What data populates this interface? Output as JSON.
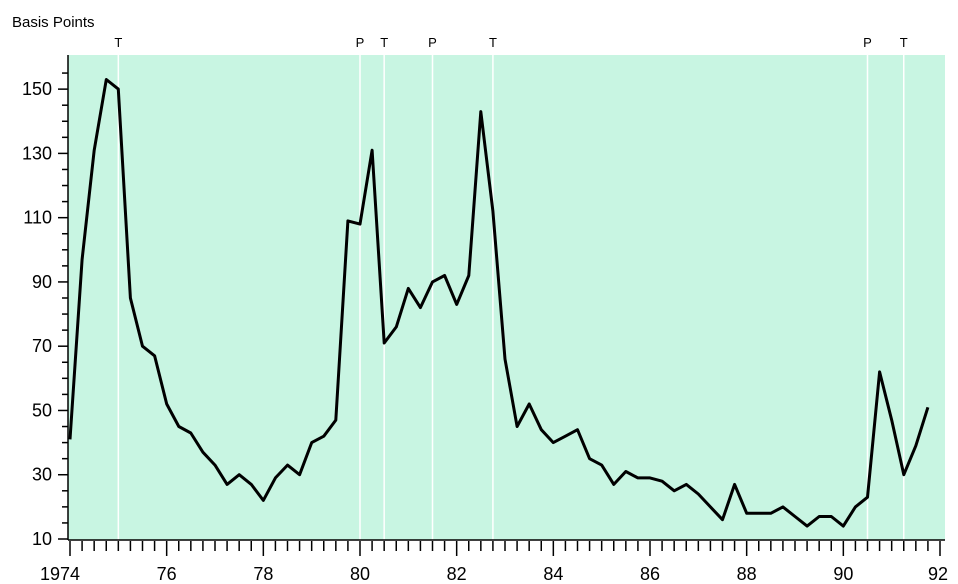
{
  "chart_data": {
    "type": "line",
    "ylabel": "Basis Points",
    "xlim": [
      1974,
      1992
    ],
    "ylim": [
      10,
      160
    ],
    "y_ticks": [
      10,
      30,
      50,
      70,
      90,
      110,
      130,
      150
    ],
    "x_ticks": [
      {
        "value": 1974,
        "label": "1974"
      },
      {
        "value": 1976,
        "label": "76"
      },
      {
        "value": 1978,
        "label": "78"
      },
      {
        "value": 1980,
        "label": "80"
      },
      {
        "value": 1982,
        "label": "82"
      },
      {
        "value": 1984,
        "label": "84"
      },
      {
        "value": 1986,
        "label": "86"
      },
      {
        "value": 1988,
        "label": "88"
      },
      {
        "value": 1990,
        "label": "90"
      },
      {
        "value": 1992,
        "label": "92"
      }
    ],
    "markers": [
      {
        "label": "T",
        "x": 1975.0
      },
      {
        "label": "P",
        "x": 1980.0
      },
      {
        "label": "T",
        "x": 1980.5
      },
      {
        "label": "P",
        "x": 1981.5
      },
      {
        "label": "T",
        "x": 1982.75
      },
      {
        "label": "P",
        "x": 1990.5
      },
      {
        "label": "T",
        "x": 1991.25
      }
    ],
    "colors": {
      "plot_background": "#c8f5e2",
      "line": "#000000",
      "marker_line": "#ffffff"
    },
    "series": [
      {
        "values": [
          [
            1974.0,
            41
          ],
          [
            1974.25,
            97
          ],
          [
            1974.5,
            131
          ],
          [
            1974.75,
            153
          ],
          [
            1975.0,
            150
          ],
          [
            1975.25,
            85
          ],
          [
            1975.5,
            70
          ],
          [
            1975.75,
            67
          ],
          [
            1976.0,
            52
          ],
          [
            1976.25,
            45
          ],
          [
            1976.5,
            43
          ],
          [
            1976.75,
            37
          ],
          [
            1977.0,
            33
          ],
          [
            1977.25,
            27
          ],
          [
            1977.5,
            30
          ],
          [
            1977.75,
            27
          ],
          [
            1978.0,
            22
          ],
          [
            1978.25,
            29
          ],
          [
            1978.5,
            33
          ],
          [
            1978.75,
            30
          ],
          [
            1979.0,
            40
          ],
          [
            1979.25,
            42
          ],
          [
            1979.5,
            47
          ],
          [
            1979.75,
            109
          ],
          [
            1980.0,
            108
          ],
          [
            1980.25,
            131
          ],
          [
            1980.5,
            71
          ],
          [
            1980.75,
            76
          ],
          [
            1981.0,
            88
          ],
          [
            1981.25,
            82
          ],
          [
            1981.5,
            90
          ],
          [
            1981.75,
            92
          ],
          [
            1982.0,
            83
          ],
          [
            1982.25,
            92
          ],
          [
            1982.5,
            143
          ],
          [
            1982.75,
            112
          ],
          [
            1983.0,
            66
          ],
          [
            1983.25,
            45
          ],
          [
            1983.5,
            52
          ],
          [
            1983.75,
            44
          ],
          [
            1984.0,
            40
          ],
          [
            1984.25,
            42
          ],
          [
            1984.5,
            44
          ],
          [
            1984.75,
            35
          ],
          [
            1985.0,
            33
          ],
          [
            1985.25,
            27
          ],
          [
            1985.5,
            31
          ],
          [
            1985.75,
            29
          ],
          [
            1986.0,
            29
          ],
          [
            1986.25,
            28
          ],
          [
            1986.5,
            25
          ],
          [
            1986.75,
            27
          ],
          [
            1987.0,
            24
          ],
          [
            1987.25,
            20
          ],
          [
            1987.5,
            16
          ],
          [
            1987.75,
            27
          ],
          [
            1988.0,
            18
          ],
          [
            1988.25,
            18
          ],
          [
            1988.5,
            18
          ],
          [
            1988.75,
            20
          ],
          [
            1989.0,
            17
          ],
          [
            1989.25,
            14
          ],
          [
            1989.5,
            17
          ],
          [
            1989.75,
            17
          ],
          [
            1990.0,
            14
          ],
          [
            1990.25,
            20
          ],
          [
            1990.5,
            23
          ],
          [
            1990.75,
            62
          ],
          [
            1991.0,
            47
          ],
          [
            1991.25,
            30
          ],
          [
            1991.5,
            39
          ],
          [
            1991.75,
            51
          ]
        ]
      }
    ]
  }
}
